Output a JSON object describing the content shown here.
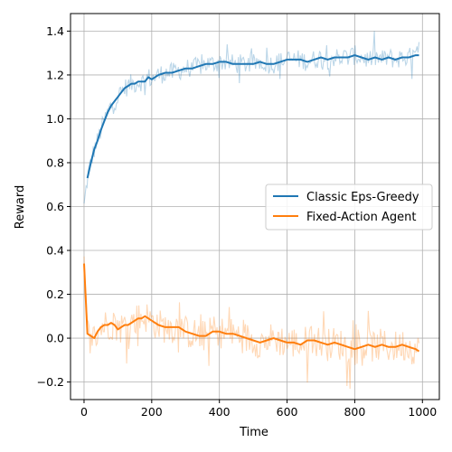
{
  "chart_data": {
    "type": "line",
    "title": "",
    "xlabel": "Time",
    "ylabel": "Reward",
    "xlim": [
      -40,
      1050
    ],
    "ylim": [
      -0.28,
      1.48
    ],
    "xticks": [
      0,
      200,
      400,
      600,
      800,
      1000
    ],
    "xtick_labels": [
      "0",
      "200",
      "400",
      "600",
      "800",
      "1000"
    ],
    "yticks": [
      -0.2,
      0.0,
      0.2,
      0.4,
      0.6,
      0.8,
      1.0,
      1.2,
      1.4
    ],
    "ytick_labels": [
      "−0.2",
      "0.0",
      "0.2",
      "0.4",
      "0.6",
      "0.8",
      "1.0",
      "1.2",
      "1.4"
    ],
    "grid": true,
    "legend_position": "center-right",
    "series": [
      {
        "name": "Classic Eps-Greedy",
        "color": "#1f77b4",
        "raw_noise": 0.045,
        "smoothed": [
          [
            10,
            0.73
          ],
          [
            20,
            0.8
          ],
          [
            30,
            0.86
          ],
          [
            40,
            0.9
          ],
          [
            50,
            0.95
          ],
          [
            60,
            0.99
          ],
          [
            70,
            1.03
          ],
          [
            80,
            1.06
          ],
          [
            90,
            1.08
          ],
          [
            100,
            1.1
          ],
          [
            110,
            1.12
          ],
          [
            120,
            1.14
          ],
          [
            130,
            1.15
          ],
          [
            140,
            1.16
          ],
          [
            150,
            1.16
          ],
          [
            160,
            1.17
          ],
          [
            170,
            1.17
          ],
          [
            180,
            1.17
          ],
          [
            190,
            1.19
          ],
          [
            200,
            1.18
          ],
          [
            220,
            1.2
          ],
          [
            240,
            1.21
          ],
          [
            260,
            1.21
          ],
          [
            280,
            1.22
          ],
          [
            300,
            1.23
          ],
          [
            320,
            1.23
          ],
          [
            340,
            1.24
          ],
          [
            360,
            1.25
          ],
          [
            380,
            1.25
          ],
          [
            400,
            1.26
          ],
          [
            420,
            1.26
          ],
          [
            440,
            1.25
          ],
          [
            460,
            1.25
          ],
          [
            480,
            1.25
          ],
          [
            500,
            1.25
          ],
          [
            520,
            1.26
          ],
          [
            540,
            1.25
          ],
          [
            560,
            1.25
          ],
          [
            580,
            1.26
          ],
          [
            600,
            1.27
          ],
          [
            620,
            1.27
          ],
          [
            640,
            1.27
          ],
          [
            660,
            1.26
          ],
          [
            680,
            1.27
          ],
          [
            700,
            1.28
          ],
          [
            720,
            1.27
          ],
          [
            740,
            1.28
          ],
          [
            760,
            1.28
          ],
          [
            780,
            1.28
          ],
          [
            800,
            1.29
          ],
          [
            820,
            1.28
          ],
          [
            840,
            1.27
          ],
          [
            860,
            1.28
          ],
          [
            880,
            1.27
          ],
          [
            900,
            1.28
          ],
          [
            920,
            1.27
          ],
          [
            940,
            1.28
          ],
          [
            960,
            1.28
          ],
          [
            980,
            1.29
          ],
          [
            990,
            1.29
          ]
        ]
      },
      {
        "name": "Fixed-Action Agent",
        "color": "#ff7f0e",
        "raw_noise": 0.075,
        "smoothed": [
          [
            0,
            0.34
          ],
          [
            10,
            0.02
          ],
          [
            20,
            0.01
          ],
          [
            30,
            0.0
          ],
          [
            40,
            0.03
          ],
          [
            50,
            0.05
          ],
          [
            60,
            0.06
          ],
          [
            70,
            0.06
          ],
          [
            80,
            0.07
          ],
          [
            90,
            0.06
          ],
          [
            100,
            0.04
          ],
          [
            110,
            0.05
          ],
          [
            120,
            0.06
          ],
          [
            130,
            0.06
          ],
          [
            140,
            0.07
          ],
          [
            150,
            0.08
          ],
          [
            160,
            0.09
          ],
          [
            170,
            0.09
          ],
          [
            180,
            0.1
          ],
          [
            190,
            0.09
          ],
          [
            200,
            0.08
          ],
          [
            220,
            0.06
          ],
          [
            240,
            0.05
          ],
          [
            260,
            0.05
          ],
          [
            280,
            0.05
          ],
          [
            300,
            0.03
          ],
          [
            320,
            0.02
          ],
          [
            340,
            0.01
          ],
          [
            360,
            0.01
          ],
          [
            380,
            0.03
          ],
          [
            400,
            0.03
          ],
          [
            420,
            0.02
          ],
          [
            440,
            0.02
          ],
          [
            460,
            0.01
          ],
          [
            480,
            0.0
          ],
          [
            500,
            -0.01
          ],
          [
            520,
            -0.02
          ],
          [
            540,
            -0.01
          ],
          [
            560,
            0.0
          ],
          [
            580,
            -0.01
          ],
          [
            600,
            -0.02
          ],
          [
            620,
            -0.02
          ],
          [
            640,
            -0.03
          ],
          [
            660,
            -0.01
          ],
          [
            680,
            -0.01
          ],
          [
            700,
            -0.02
          ],
          [
            720,
            -0.03
          ],
          [
            740,
            -0.02
          ],
          [
            760,
            -0.03
          ],
          [
            780,
            -0.04
          ],
          [
            800,
            -0.05
          ],
          [
            820,
            -0.04
          ],
          [
            840,
            -0.03
          ],
          [
            860,
            -0.04
          ],
          [
            880,
            -0.03
          ],
          [
            900,
            -0.04
          ],
          [
            920,
            -0.04
          ],
          [
            940,
            -0.03
          ],
          [
            960,
            -0.04
          ],
          [
            980,
            -0.05
          ],
          [
            990,
            -0.06
          ]
        ]
      }
    ]
  }
}
